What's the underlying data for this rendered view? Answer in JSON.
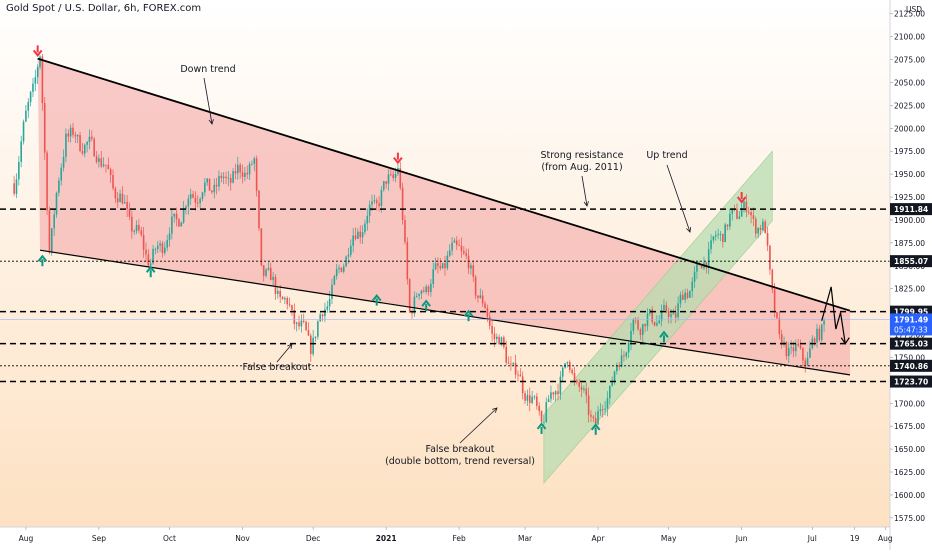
{
  "header": {
    "title": "Gold Spot / U.S. Dollar, 6h, FOREX.com"
  },
  "chart_data": {
    "type": "line",
    "title": "Gold Spot / U.S. Dollar, 6h, FOREX.com",
    "series": [
      {
        "values": [
          {
            "x": "2020-07-27",
            "y": 1940
          },
          {
            "x": "2020-08-03",
            "y": 2040
          },
          {
            "x": "2020-08-07",
            "y": 2075
          },
          {
            "x": "2020-08-11",
            "y": 1870
          },
          {
            "x": "2020-08-18",
            "y": 1995
          },
          {
            "x": "2020-08-31",
            "y": 1975
          },
          {
            "x": "2020-09-23",
            "y": 1855
          },
          {
            "x": "2020-10-10",
            "y": 1925
          },
          {
            "x": "2020-11-06",
            "y": 1960
          },
          {
            "x": "2020-11-09",
            "y": 1850
          },
          {
            "x": "2020-11-30",
            "y": 1765
          },
          {
            "x": "2020-12-16",
            "y": 1870
          },
          {
            "x": "2021-01-06",
            "y": 1959
          },
          {
            "x": "2021-01-11",
            "y": 1805
          },
          {
            "x": "2021-02-01",
            "y": 1875
          },
          {
            "x": "2021-02-15",
            "y": 1780
          },
          {
            "x": "2021-03-03",
            "y": 1705
          },
          {
            "x": "2021-03-08",
            "y": 1683
          },
          {
            "x": "2021-03-19",
            "y": 1745
          },
          {
            "x": "2021-03-31",
            "y": 1677
          },
          {
            "x": "2021-04-16",
            "y": 1785
          },
          {
            "x": "2021-05-04",
            "y": 1800
          },
          {
            "x": "2021-05-20",
            "y": 1875
          },
          {
            "x": "2021-06-01",
            "y": 1916
          },
          {
            "x": "2021-06-11",
            "y": 1885
          },
          {
            "x": "2021-06-17",
            "y": 1765
          },
          {
            "x": "2021-06-29",
            "y": 1750
          },
          {
            "x": "2021-07-06",
            "y": 1791.49
          }
        ]
      }
    ],
    "x_ticks": [
      "Aug",
      "Sep",
      "Oct",
      "Nov",
      "Dec",
      "2021",
      "Feb",
      "Mar",
      "Apr",
      "May",
      "Jun",
      "Jul",
      "19",
      "Aug"
    ],
    "y_ticks": [
      2125,
      2100,
      2075,
      2050,
      2025,
      2000,
      1975,
      1950,
      1925,
      1900,
      1875,
      1850,
      1825,
      1800,
      1775,
      1750,
      1725,
      1700,
      1675,
      1650,
      1625,
      1600,
      1575
    ],
    "y_unit_label": "USD",
    "ylim": [
      1565,
      2140
    ],
    "xlim": [
      "2020-07-21",
      "2021-08-03"
    ],
    "grid": false,
    "levels": [
      {
        "value": 1911.84,
        "label": "1911.84",
        "style": "dashed"
      },
      {
        "value": 1855.07,
        "label": "1855.07",
        "style": "dotted"
      },
      {
        "value": 1799.95,
        "label": "1799.95",
        "style": "dashed"
      },
      {
        "value": 1765.03,
        "label": "1765.03",
        "style": "dashed"
      },
      {
        "value": 1740.86,
        "label": "1740.86",
        "style": "dotted"
      },
      {
        "value": 1723.7,
        "label": "1723.70",
        "style": "dashed"
      }
    ],
    "current_price": {
      "value": 1791.49,
      "label": "1791.49",
      "countdown": "05:47:33"
    },
    "down_channel": {
      "upper": [
        {
          "x": "2020-08-06",
          "y": 2076
        },
        {
          "x": "2021-07-17",
          "y": 1801
        }
      ],
      "lower": [
        {
          "x": "2020-08-07",
          "y": 1867
        },
        {
          "x": "2021-07-17",
          "y": 1731
        }
      ]
    },
    "up_channel": [
      {
        "x": "2021-03-09",
        "y": 1688
      },
      {
        "x": "2021-06-14",
        "y": 1975
      },
      {
        "x": "2021-06-14",
        "y": 1899
      },
      {
        "x": "2021-03-09",
        "y": 1613
      }
    ],
    "annotations": [
      {
        "text": "Down trend"
      },
      {
        "text": "Strong resistance"
      },
      {
        "text": "(from Aug. 2011)"
      },
      {
        "text": "Up trend"
      },
      {
        "text": "False breakout"
      },
      {
        "text": "False breakout"
      },
      {
        "text": "(double bottom, trend reversal)"
      }
    ],
    "markers": [
      {
        "kind": "sell",
        "x": "2020-08-06",
        "y": 2085
      },
      {
        "kind": "buy",
        "x": "2020-08-08",
        "y": 1855
      },
      {
        "kind": "buy",
        "x": "2020-09-23",
        "y": 1843
      },
      {
        "kind": "sell",
        "x": "2021-01-06",
        "y": 1968
      },
      {
        "kind": "buy",
        "x": "2020-12-28",
        "y": 1812
      },
      {
        "kind": "buy",
        "x": "2021-01-18",
        "y": 1806
      },
      {
        "kind": "buy",
        "x": "2021-02-05",
        "y": 1795
      },
      {
        "kind": "buy",
        "x": "2021-03-08",
        "y": 1672
      },
      {
        "kind": "buy",
        "x": "2021-03-31",
        "y": 1671
      },
      {
        "kind": "buy",
        "x": "2021-04-29",
        "y": 1772
      },
      {
        "kind": "sell",
        "x": "2021-06-01",
        "y": 1925
      }
    ],
    "colors": {
      "down_channel_fill": "#f3a9a9",
      "up_channel_fill": "#b8dcb0",
      "background_top": "#ffffff",
      "background_bottom": "#fde1c2",
      "candle_up": "#26a69a",
      "candle_down": "#ef5350",
      "current_price": "#2962ff",
      "sell_marker": "#f23645",
      "buy_marker": "#089981"
    }
  }
}
